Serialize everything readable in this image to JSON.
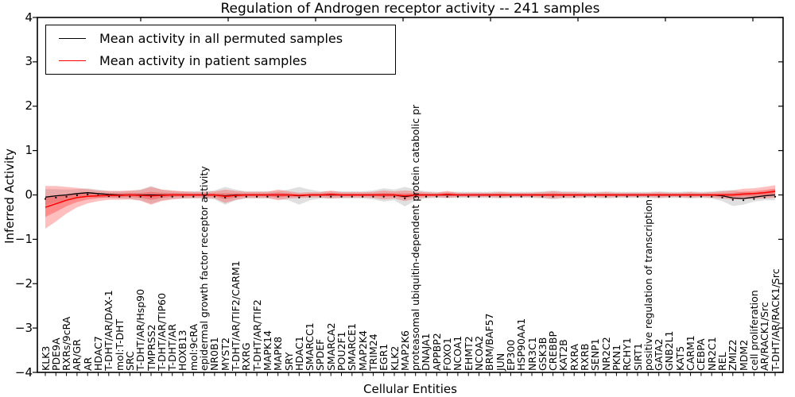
{
  "title": "Regulation of Androgen receptor activity -- 241 samples",
  "legend": [
    {
      "label": "Mean activity in all permuted samples",
      "color": "#000000"
    },
    {
      "label": "Mean activity in patient samples",
      "color": "#ff0000"
    }
  ],
  "axes": {
    "xlabel": "Cellular Entities",
    "ylabel": "Inferred Activity",
    "yticks": [
      "4",
      "3",
      "2",
      "1",
      "0",
      "−1",
      "−2",
      "−3",
      "−4"
    ],
    "ytick_values": [
      4,
      3,
      2,
      1,
      0,
      -1,
      -2,
      -3,
      -4
    ]
  },
  "chart_data": {
    "type": "line",
    "title": "Regulation of Androgen receptor activity -- 241 samples",
    "xlabel": "Cellular Entities",
    "ylabel": "Inferred Activity",
    "ylim": [
      -4,
      4
    ],
    "grid": false,
    "legend_position": "upper left",
    "categories": [
      "KLK3",
      "PDE9A",
      "RXRs/9cRA",
      "AR/GR",
      "AR",
      "HDAC7",
      "T-DHT/AR/DAX-1",
      "mol:T-DHT",
      "SRC",
      "T-DHT/AR/Hsp90",
      "TMPRSS2",
      "T-DHT/AR/TIP60",
      "T-DHT/AR",
      "HOXB13",
      "mol:9cRA",
      "epidermal growth factor receptor activity",
      "NR0B1",
      "MYST2",
      "T-DHT/AR/TIF2/CARM1",
      "RXRG",
      "T-DHT/AR/TIF2",
      "MAPK14",
      "MAPK8",
      "SRY",
      "HDAC1",
      "SMARCC1",
      "SPDEF",
      "SMARCA2",
      "POU2F1",
      "SMARCE1",
      "MAP2K4",
      "TRIM24",
      "EGR1",
      "KLK2",
      "MAP2K6",
      "proteasomal ubiquitin-dependent protein catabolic pr",
      "DNAJA1",
      "APPBP2",
      "FOXO1",
      "NCOA1",
      "EHMT2",
      "NCOA2",
      "BRM/BAF57",
      "JUN",
      "EP300",
      "HSP90AA1",
      "NR3C1",
      "GSK3B",
      "CREBBP",
      "KAT2B",
      "RXRA",
      "RXRB",
      "SENP1",
      "NR2C2",
      "PKN1",
      "RCHY1",
      "SIRT1",
      "positive regulation of transcription",
      "GATA2",
      "GNB2L1",
      "KAT5",
      "CARM1",
      "CEBPA",
      "NR2C1",
      "REL",
      "ZMIZ2",
      "MDM2",
      "cell proliferation",
      "AR/RACK1/Src",
      "T-DHT/AR/RACK1/Src"
    ],
    "series": [
      {
        "name": "Mean activity in all permuted samples",
        "color": "#000000",
        "band_color": "#bbbbbb",
        "mean": [
          -0.05,
          -0.02,
          0.0,
          0.03,
          0.05,
          0.03,
          0.01,
          0.0,
          0.0,
          0.0,
          0.0,
          0.0,
          0.0,
          0.0,
          0.0,
          0.0,
          0.0,
          -0.02,
          0.0,
          0.0,
          0.0,
          0.0,
          0.0,
          0.0,
          -0.02,
          0.0,
          0.0,
          0.0,
          0.0,
          0.0,
          0.0,
          0.0,
          0.0,
          0.0,
          -0.04,
          0.0,
          0.0,
          0.0,
          0.0,
          0.0,
          0.0,
          0.0,
          0.0,
          0.0,
          0.0,
          0.0,
          0.0,
          0.0,
          0.0,
          0.0,
          0.0,
          0.0,
          0.0,
          0.0,
          0.0,
          0.0,
          0.0,
          0.0,
          0.0,
          0.0,
          0.0,
          0.0,
          0.0,
          0.0,
          -0.02,
          -0.07,
          -0.08,
          -0.05,
          -0.02,
          0.0
        ],
        "std": [
          0.18,
          0.15,
          0.12,
          0.1,
          0.1,
          0.09,
          0.08,
          0.08,
          0.09,
          0.12,
          0.2,
          0.12,
          0.09,
          0.08,
          0.08,
          0.08,
          0.1,
          0.2,
          0.12,
          0.08,
          0.08,
          0.08,
          0.09,
          0.12,
          0.2,
          0.12,
          0.08,
          0.08,
          0.08,
          0.08,
          0.08,
          0.1,
          0.15,
          0.12,
          0.22,
          0.12,
          0.08,
          0.07,
          0.07,
          0.07,
          0.07,
          0.07,
          0.07,
          0.08,
          0.07,
          0.07,
          0.07,
          0.08,
          0.1,
          0.08,
          0.08,
          0.07,
          0.07,
          0.08,
          0.07,
          0.07,
          0.07,
          0.07,
          0.08,
          0.07,
          0.07,
          0.08,
          0.07,
          0.08,
          0.12,
          0.18,
          0.14,
          0.1,
          0.1,
          0.12
        ]
      },
      {
        "name": "Mean activity in patient samples",
        "color": "#ff0000",
        "band_color": "#ff2a2a",
        "mean": [
          -0.28,
          -0.2,
          -0.12,
          -0.06,
          -0.03,
          -0.02,
          -0.01,
          -0.01,
          0.0,
          -0.01,
          -0.02,
          -0.01,
          0.0,
          0.0,
          0.0,
          0.0,
          0.0,
          -0.03,
          -0.01,
          0.0,
          0.0,
          0.0,
          0.0,
          0.0,
          -0.01,
          0.0,
          0.0,
          0.01,
          0.0,
          0.0,
          0.0,
          0.0,
          0.0,
          0.0,
          -0.02,
          0.0,
          0.0,
          0.0,
          0.01,
          0.0,
          0.0,
          0.0,
          0.0,
          0.0,
          0.0,
          0.0,
          0.0,
          0.0,
          0.0,
          0.0,
          0.0,
          0.0,
          0.0,
          0.0,
          0.0,
          0.0,
          0.0,
          0.0,
          0.0,
          0.0,
          0.0,
          0.0,
          0.0,
          0.0,
          0.0,
          0.0,
          0.02,
          0.03,
          0.05,
          0.08
        ],
        "std": [
          0.48,
          0.4,
          0.3,
          0.22,
          0.16,
          0.12,
          0.1,
          0.1,
          0.1,
          0.12,
          0.2,
          0.13,
          0.1,
          0.08,
          0.07,
          0.07,
          0.08,
          0.15,
          0.1,
          0.07,
          0.07,
          0.07,
          0.12,
          0.08,
          0.06,
          0.06,
          0.06,
          0.09,
          0.06,
          0.06,
          0.06,
          0.07,
          0.1,
          0.08,
          0.12,
          0.08,
          0.06,
          0.05,
          0.08,
          0.05,
          0.05,
          0.05,
          0.05,
          0.06,
          0.05,
          0.05,
          0.05,
          0.06,
          0.08,
          0.06,
          0.06,
          0.05,
          0.05,
          0.06,
          0.05,
          0.05,
          0.05,
          0.05,
          0.06,
          0.05,
          0.05,
          0.06,
          0.05,
          0.06,
          0.08,
          0.1,
          0.12,
          0.12,
          0.13,
          0.14
        ]
      }
    ]
  }
}
